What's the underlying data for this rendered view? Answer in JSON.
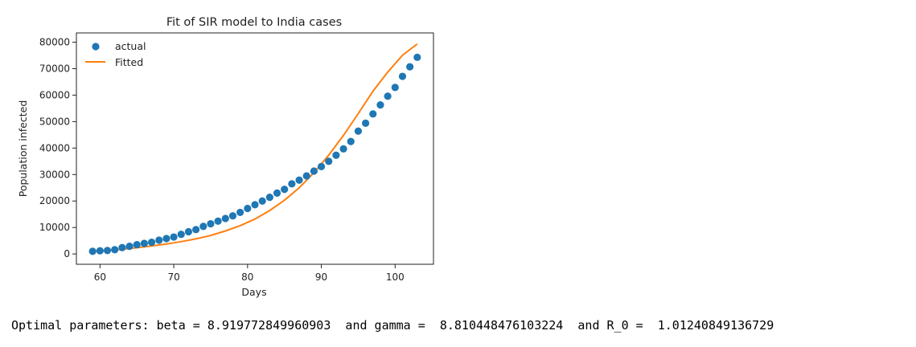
{
  "chart_data": {
    "type": "line",
    "title": "Fit of SIR model to India cases",
    "xlabel": "Days",
    "ylabel": "Population infected",
    "xlim": [
      56.8,
      105.2
    ],
    "ylim": [
      -3900,
      83500
    ],
    "x_ticks": [
      60,
      70,
      80,
      90,
      100
    ],
    "y_ticks": [
      0,
      10000,
      20000,
      30000,
      40000,
      50000,
      60000,
      70000,
      80000
    ],
    "x_tick_labels": [
      "60",
      "70",
      "80",
      "90",
      "100"
    ],
    "y_tick_labels": [
      "0",
      "10000",
      "20000",
      "30000",
      "40000",
      "50000",
      "60000",
      "70000",
      "80000"
    ],
    "grid": false,
    "legend_position": "upper-left",
    "series": [
      {
        "name": "actual",
        "style": "scatter",
        "color": "#1f77b4",
        "x": [
          59,
          60,
          61,
          62,
          63,
          64,
          65,
          66,
          67,
          68,
          69,
          70,
          71,
          72,
          73,
          74,
          75,
          76,
          77,
          78,
          79,
          80,
          81,
          82,
          83,
          84,
          85,
          86,
          87,
          88,
          89,
          90,
          91,
          92,
          93,
          94,
          95,
          96,
          97,
          98,
          99,
          100,
          101,
          102,
          103
        ],
        "y": [
          1000,
          1200,
          1300,
          1600,
          2400,
          2900,
          3500,
          4000,
          4400,
          5200,
          5800,
          6400,
          7400,
          8400,
          9200,
          10400,
          11400,
          12400,
          13400,
          14400,
          15700,
          17200,
          18600,
          20000,
          21400,
          23000,
          24400,
          26500,
          27900,
          29500,
          31300,
          33000,
          35000,
          37300,
          39700,
          42500,
          46400,
          49400,
          52900,
          56300,
          59600,
          62900,
          67100,
          70700,
          74300
        ]
      },
      {
        "name": "Fitted",
        "style": "line",
        "color": "#ff7f0e",
        "x": [
          59,
          61,
          63,
          65,
          67,
          69,
          71,
          73,
          75,
          77,
          79,
          81,
          83,
          85,
          87,
          89,
          91,
          93,
          95,
          97,
          99,
          101,
          103
        ],
        "y": [
          1000,
          1350,
          1800,
          2350,
          3000,
          3750,
          4650,
          5700,
          7000,
          8700,
          10700,
          13200,
          16400,
          20300,
          25000,
          30700,
          37300,
          44800,
          53000,
          61500,
          68700,
          75100,
          79300
        ]
      }
    ]
  },
  "output": {
    "text": "Optimal parameters: beta = 8.919772849960903  and gamma =  8.810448476103224  and R_0 =  1.01240849136729"
  }
}
